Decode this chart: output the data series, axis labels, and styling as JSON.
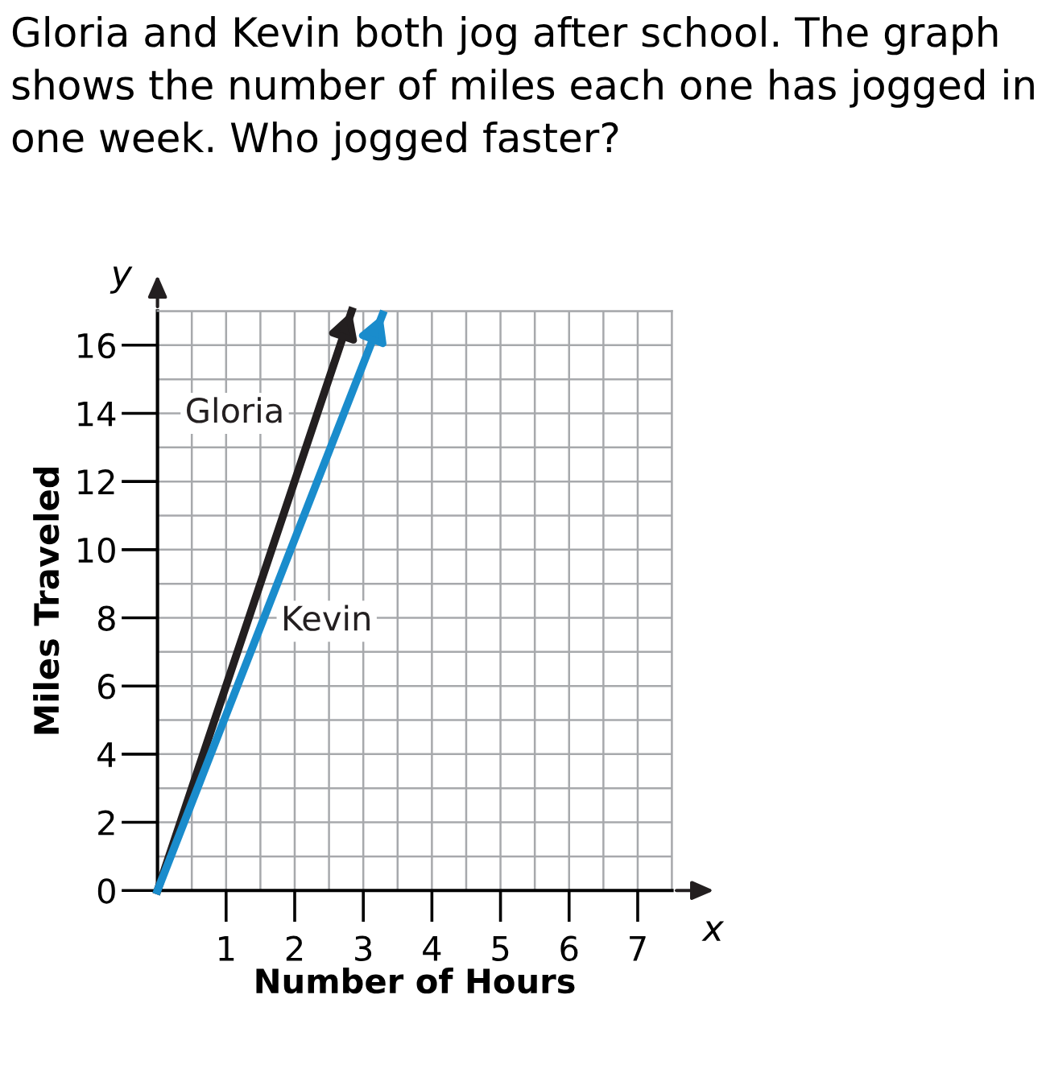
{
  "chart_data": {
    "type": "line",
    "title": "Gloria and Kevin both jog after school. The graph shows the number of miles each one has jogged in one week. Who jogged faster?",
    "xlabel": "Number of Hours",
    "ylabel": "Miles Traveled",
    "series": [
      {
        "name": "Gloria",
        "color": "#231f20",
        "x": [
          0,
          2.83
        ],
        "values": [
          0,
          17
        ]
      },
      {
        "name": "Kevin",
        "color": "#1a8ccc",
        "x": [
          0,
          3.28
        ],
        "values": [
          0,
          16.9
        ]
      }
    ],
    "xlim": [
      0,
      7.5
    ],
    "ylim": [
      0,
      17
    ],
    "xticks": [
      1,
      2,
      3,
      4,
      5,
      6,
      7
    ],
    "yticks": [
      0,
      2,
      4,
      6,
      8,
      10,
      12,
      14,
      16
    ],
    "grid": true,
    "marker": "none",
    "line_style": "solid",
    "annotations": [
      {
        "text": "x"
      },
      {
        "text": "y"
      }
    ]
  }
}
